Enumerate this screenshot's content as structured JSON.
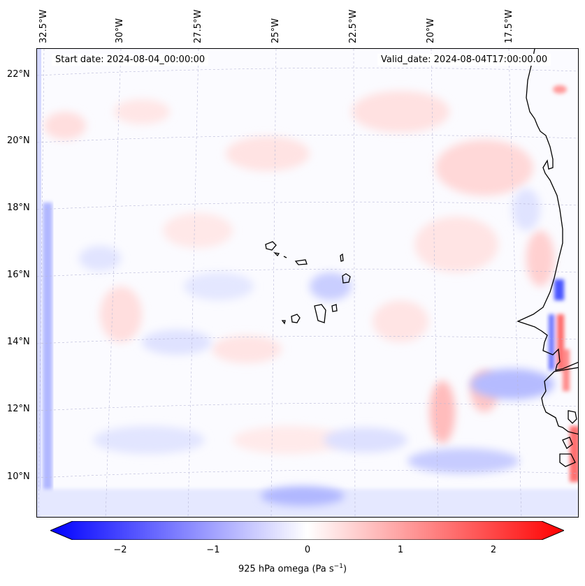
{
  "header": {
    "start_date": "Start date: 2024-08-04_00:00:00",
    "valid_date": "Valid_date: 2024-08-04T17:00:00.00"
  },
  "axes": {
    "lon_labels": [
      "32.5°W",
      "30°W",
      "27.5°W",
      "25°W",
      "22.5°W",
      "20°W",
      "17.5°W"
    ],
    "lat_labels": [
      "22°N",
      "20°N",
      "18°N",
      "16°N",
      "14°N",
      "12°N",
      "10°N"
    ]
  },
  "colorbar": {
    "ticks": [
      "−2",
      "−1",
      "0",
      "1",
      "2"
    ],
    "label_main": "925 hPa omega (Pa s",
    "label_sup": "−1",
    "label_end": ")",
    "colors": {
      "negative": "#0000ff",
      "neutral": "#ffffff",
      "positive": "#ff0000"
    },
    "range": [
      -2.5,
      2.5
    ]
  },
  "map": {
    "variable": "925 hPa omega",
    "colormap": "bwr",
    "features": [
      "coastline-africa",
      "cape-verde-islands"
    ]
  }
}
